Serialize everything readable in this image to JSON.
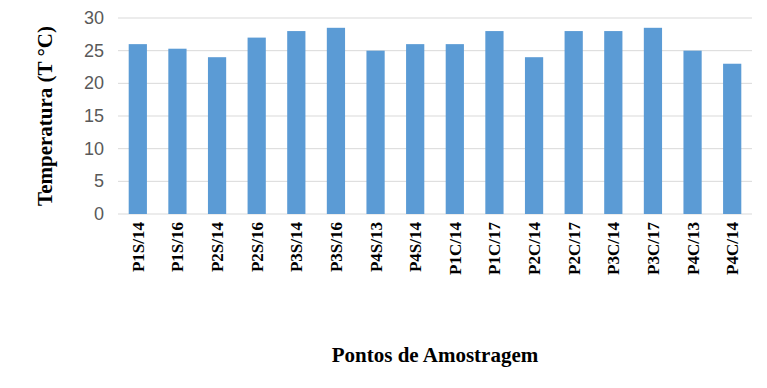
{
  "chart_data": {
    "type": "bar",
    "x_label": "Pontos de Amostragem",
    "y_label": "Temperatura (T °C)",
    "categories": [
      "P1S/14",
      "P1S/16",
      "P2S/14",
      "P2S/16",
      "P3S/14",
      "P3S/16",
      "P4S/13",
      "P4S/14",
      "P1C/14",
      "P1C/17",
      "P2C/14",
      "P2C/17",
      "P3C/14",
      "P3C/17",
      "P4C/13",
      "P4C/14"
    ],
    "values": [
      26,
      25.3,
      24,
      27,
      28,
      28.5,
      25,
      26,
      26,
      28,
      24,
      28,
      28,
      28.5,
      25,
      23
    ],
    "color": "#5b9bd5",
    "ylim": [
      0,
      30
    ],
    "yticks": [
      0,
      5,
      10,
      15,
      20,
      25,
      30
    ],
    "grid": true
  }
}
